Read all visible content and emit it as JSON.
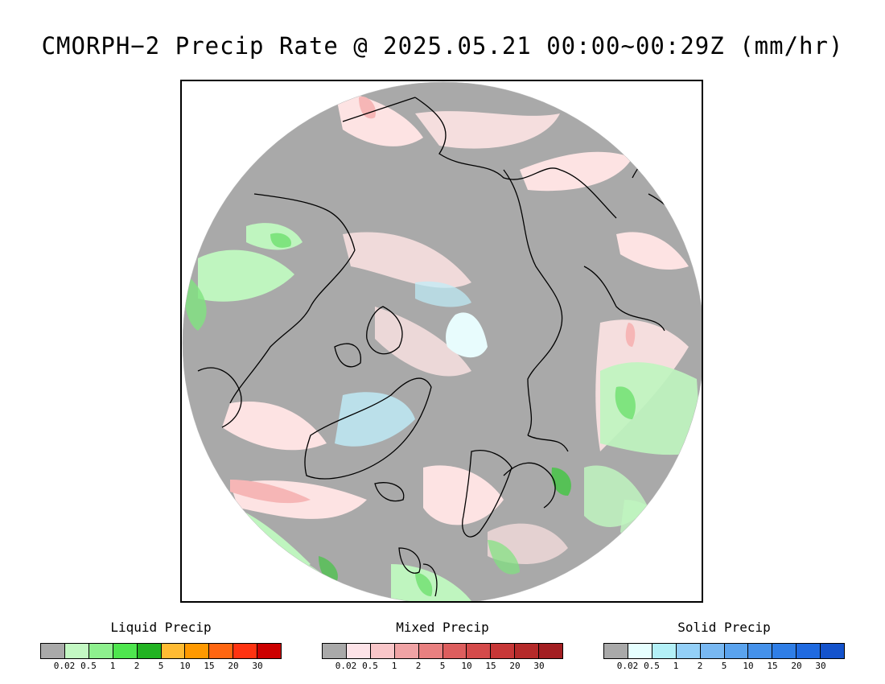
{
  "title": "CMORPH−2 Precip Rate @ 2025.05.21 00:00~00:29Z (mm/hr)",
  "map": {
    "projection": "north polar stereographic",
    "colors": {
      "no_precip": "#a9a9a9",
      "mixed_light": "#fde3e3",
      "mixed_med": "#f6b6b6",
      "liquid_light": "#bff5bf",
      "liquid_med": "#7fe47f",
      "liquid_heavy": "#33cc33",
      "solid_light": "#e8fcfd",
      "solid_med": "#bfeefa",
      "coast": "#000000"
    }
  },
  "legends": [
    {
      "title": "Liquid Precip",
      "colors": [
        "#a9a9a9",
        "#c3f8c3",
        "#8ef08e",
        "#4ee64e",
        "#22b322",
        "#ffbb33",
        "#ff9900",
        "#ff6611",
        "#ff3311",
        "#cc0000"
      ],
      "ticks": [
        "0.02",
        "0.5",
        "1",
        "2",
        "5",
        "10",
        "15",
        "20",
        "30"
      ]
    },
    {
      "title": "Mixed Precip",
      "colors": [
        "#a9a9a9",
        "#fde3e8",
        "#f9c6c9",
        "#f0a3a5",
        "#e98080",
        "#dd5e5e",
        "#d44a4a",
        "#c73737",
        "#b52a2a",
        "#a31e22"
      ],
      "ticks": [
        "0.02",
        "0.5",
        "1",
        "2",
        "5",
        "10",
        "15",
        "20",
        "30"
      ]
    },
    {
      "title": "Solid Precip",
      "colors": [
        "#a9a9a9",
        "#e6ffff",
        "#b3f0f7",
        "#93cff7",
        "#78b8f2",
        "#5aa3ee",
        "#4591ea",
        "#2f7ee6",
        "#1f6ae0",
        "#1453cc"
      ],
      "ticks": [
        "0.02",
        "0.5",
        "1",
        "2",
        "5",
        "10",
        "15",
        "20",
        "30"
      ]
    }
  ]
}
